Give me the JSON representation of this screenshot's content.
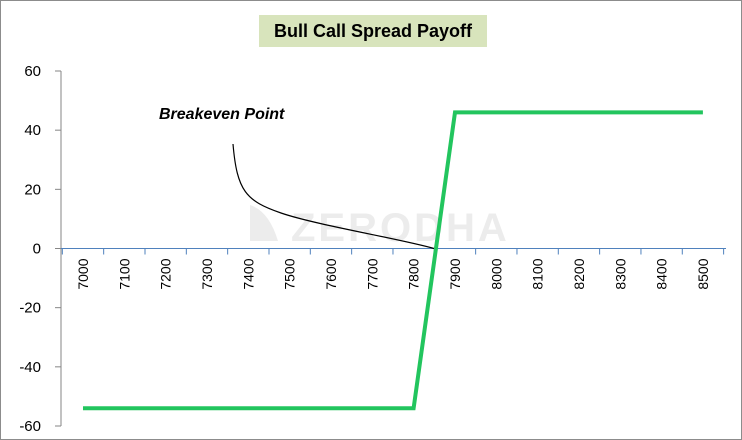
{
  "chart_data": {
    "type": "line",
    "title": "Bull Call Spread Payoff",
    "xlabel": "",
    "ylabel": "",
    "ylim": [
      -60,
      60
    ],
    "yticks": [
      60,
      40,
      20,
      0,
      -20,
      -40,
      -60
    ],
    "xticks": [
      7000,
      7100,
      7200,
      7300,
      7400,
      7500,
      7600,
      7700,
      7800,
      7900,
      8000,
      8100,
      8200,
      8300,
      8400,
      8500
    ],
    "grid": false,
    "legend": "none",
    "series": [
      {
        "color": "#22c55e",
        "points": [
          [
            7000,
            -54
          ],
          [
            7800,
            -54
          ],
          [
            7900,
            46
          ],
          [
            8500,
            46
          ]
        ]
      }
    ],
    "annotations": [
      {
        "text": "Breakeven Point",
        "target": [
          7854,
          0
        ]
      }
    ],
    "watermark": "ZERODHA",
    "colors": {
      "payoff_line": "#22c55e",
      "axis": "#4f81bd",
      "title_background": "#d8e4bc",
      "watermark": "#ececec"
    }
  }
}
